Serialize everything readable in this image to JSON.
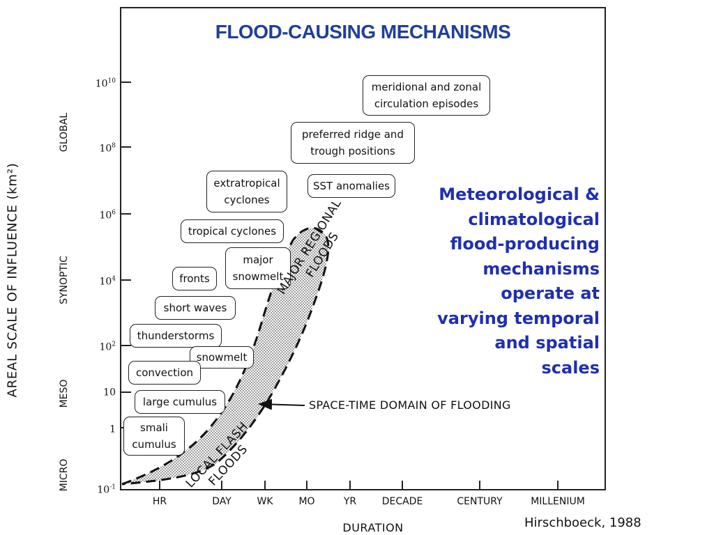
{
  "title": "FLOOD-CAUSING MECHANISMS",
  "y_axis": {
    "label": "AREAL SCALE OF INFLUENCE (km²)",
    "regions": [
      "GLOBAL",
      "SYNOPTIC",
      "MESO",
      "MICRO"
    ],
    "ticks": [
      {
        "base": "10",
        "exp": "10"
      },
      {
        "base": "10",
        "exp": "8"
      },
      {
        "base": "10",
        "exp": "6"
      },
      {
        "base": "10",
        "exp": "4"
      },
      {
        "base": "10",
        "exp": "2"
      },
      {
        "base": "10",
        "exp": ""
      },
      {
        "base": "1",
        "exp": ""
      },
      {
        "base": "10",
        "exp": "-1"
      }
    ]
  },
  "x_axis": {
    "label": "DURATION",
    "ticks": [
      "HR",
      "DAY",
      "WK",
      "MO",
      "YR",
      "DECADE",
      "CENTURY",
      "MILLENIUM"
    ]
  },
  "mechanisms": [
    "meridional and zonal circulation episodes",
    "preferred ridge and trough positions",
    "SST anomalies",
    "extratropical cyclones",
    "tropical cyclones",
    "major snowmelt",
    "fronts",
    "short waves",
    "thunderstorms",
    "snowmelt",
    "convection",
    "large cumulus",
    "smali cumulus"
  ],
  "mechanism_lines": {
    "meridional": [
      "meridional and zonal",
      "circulation episodes"
    ],
    "ridge": [
      "preferred ridge and",
      "trough positions"
    ],
    "extratropical": [
      "extratropical",
      "cyclones"
    ],
    "major_snowmelt": [
      "major",
      "snowmelt"
    ],
    "small_cumulus": [
      "smali",
      "cumulus"
    ]
  },
  "domain_annotation": "SPACE-TIME DOMAIN OF FLOODING",
  "regional_floods": [
    "MAJOR REGIONAL",
    "FLOODS"
  ],
  "flash_floods": [
    "LOCAL FLASH",
    "FLOODS"
  ],
  "side_note": [
    "Meteorological &",
    "climatological",
    "flood-producing",
    "mechanisms",
    "operate at",
    "varying temporal",
    "and spatial",
    "scales"
  ],
  "credit": "Hirschboeck, 1988",
  "colors": {
    "title": "#1f3f9a",
    "side_note": "#1f2fb0",
    "domain_fill": "#d8d8d8"
  }
}
